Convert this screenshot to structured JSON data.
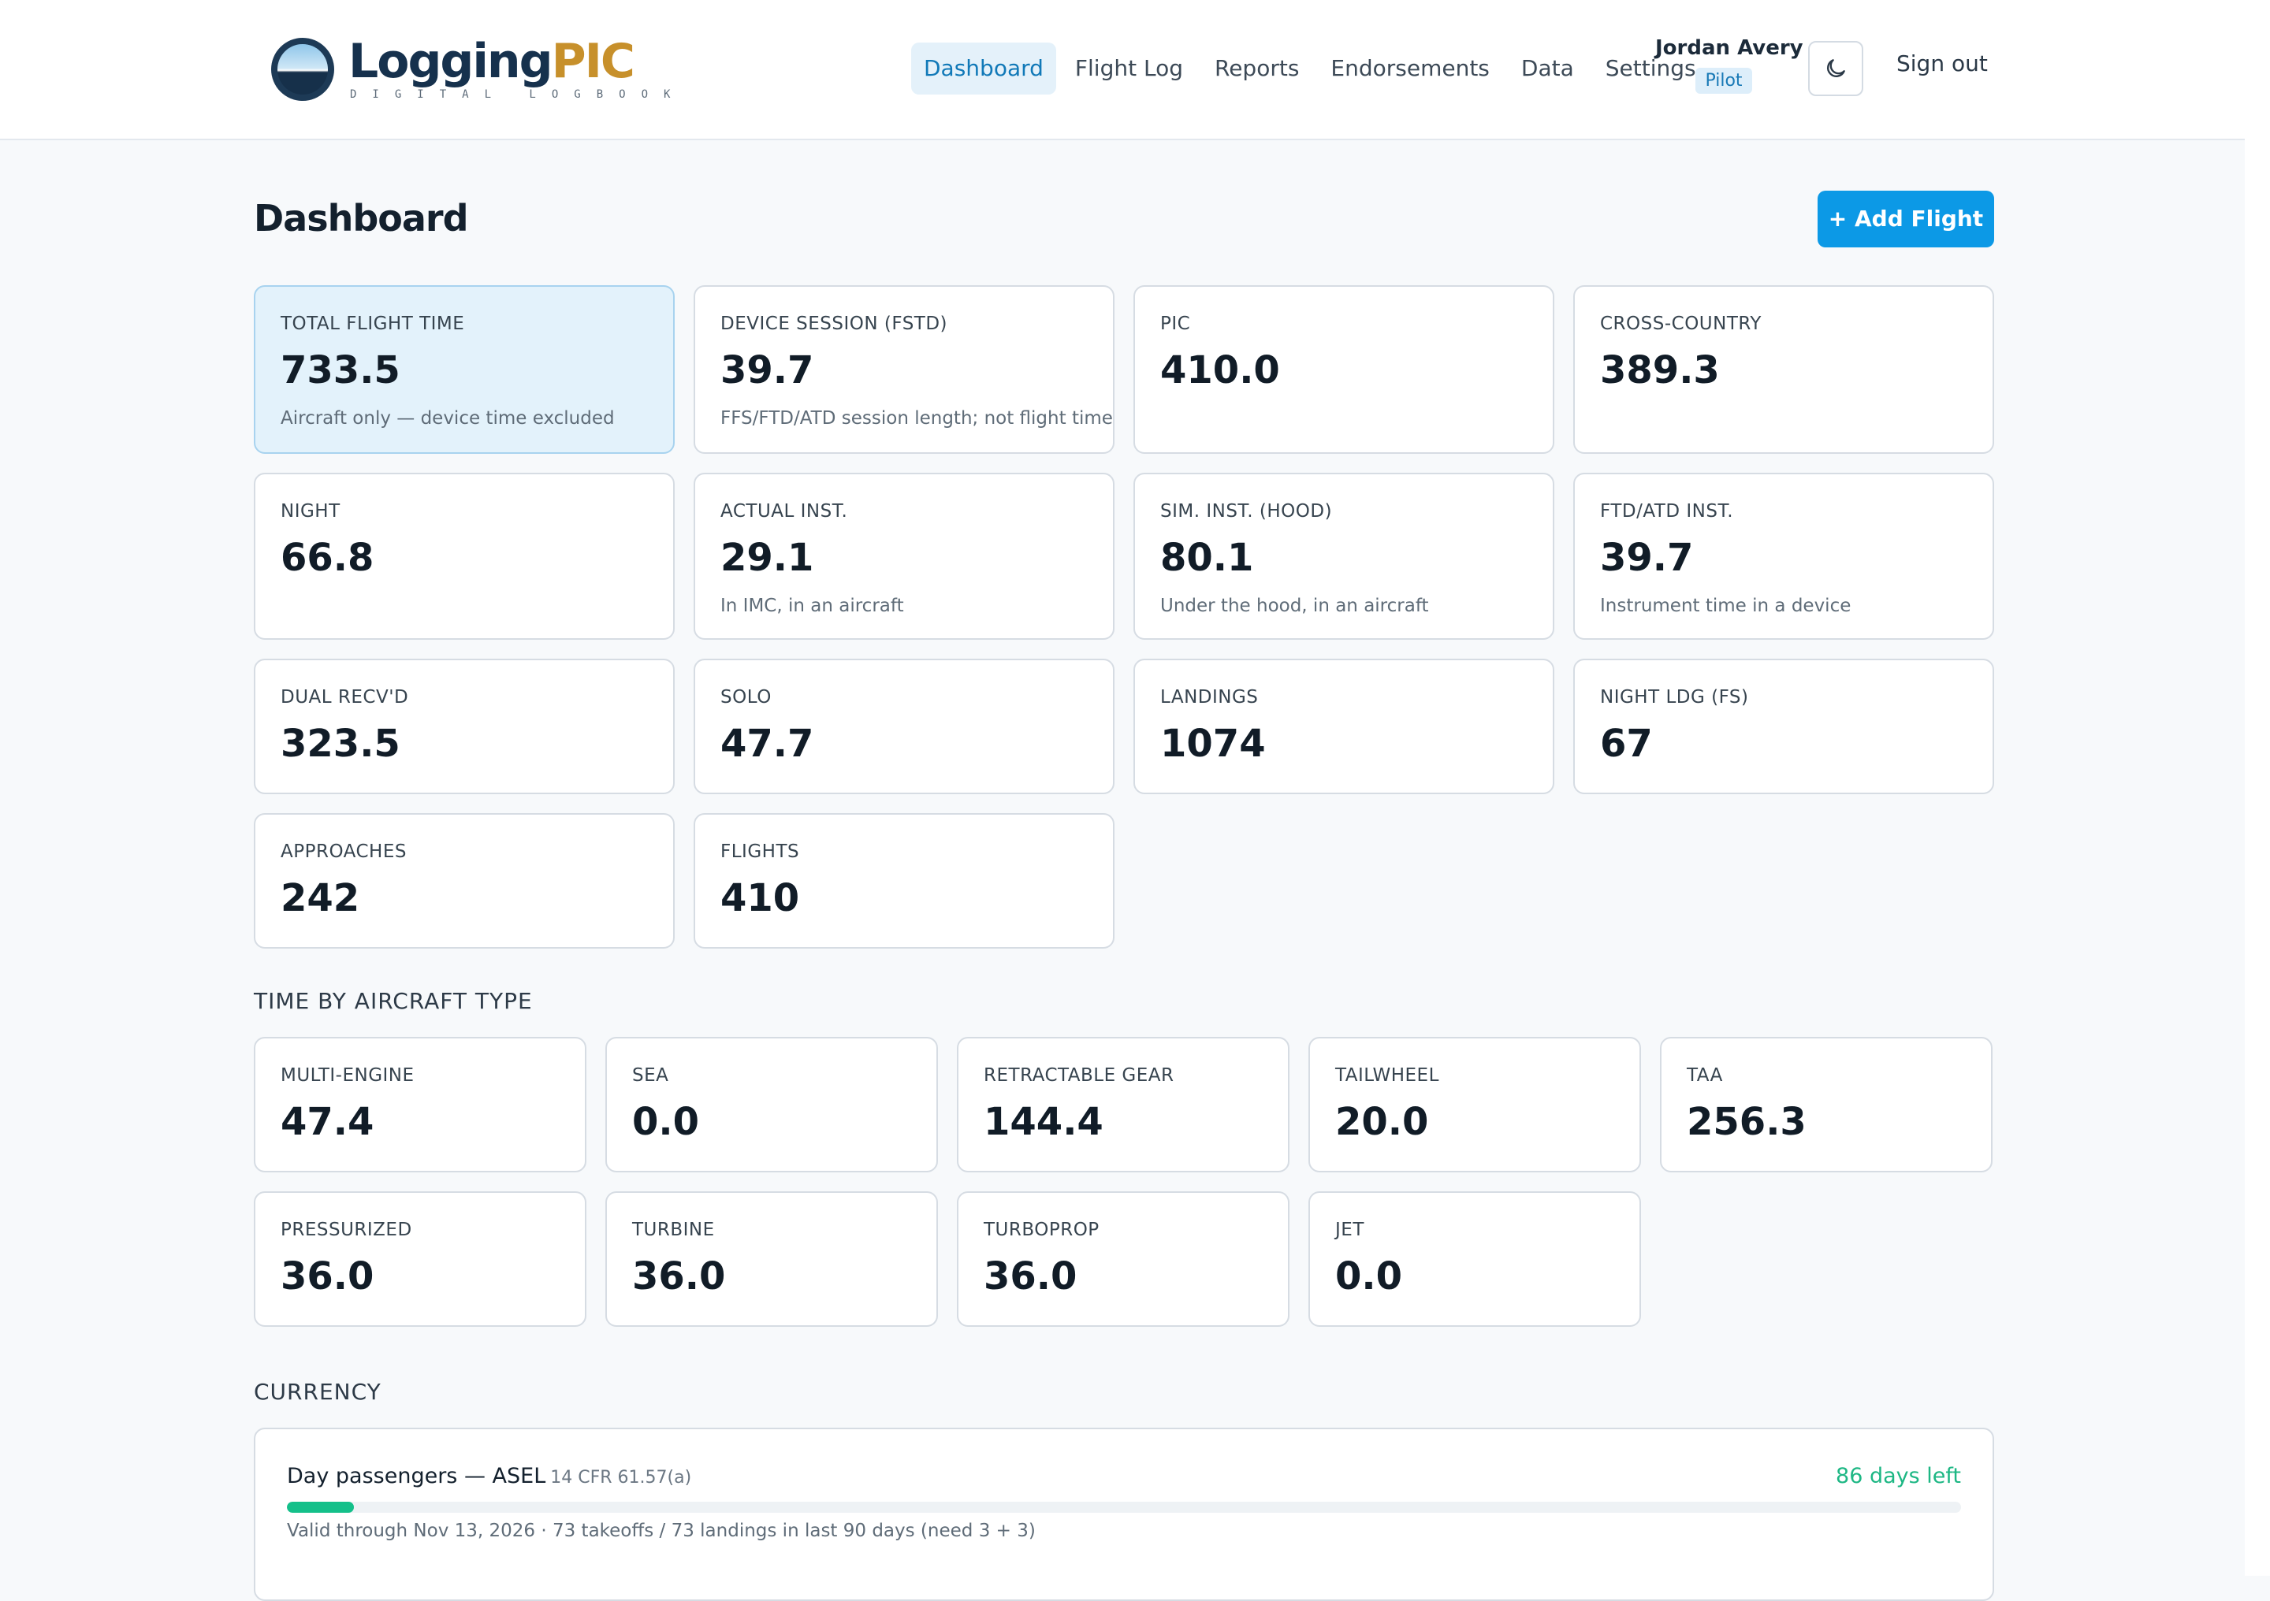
{
  "app": {
    "logo_main": "Logging",
    "logo_accent": "PIC",
    "logo_sub": "DIGITAL LOGBOOK"
  },
  "nav": {
    "items": [
      "Dashboard",
      "Flight Log",
      "Reports",
      "Endorsements",
      "Data",
      "Settings"
    ],
    "active": "Dashboard"
  },
  "user": {
    "name": "Jordan Avery",
    "role": "Pilot"
  },
  "header": {
    "theme_toggle_icon": "moon-icon",
    "sign_out_label": "Sign out"
  },
  "page": {
    "title": "Dashboard",
    "add_flight_label": "+ Add Flight"
  },
  "stats": [
    {
      "label": "TOTAL FLIGHT TIME",
      "value": "733.5",
      "note": "Aircraft only — device time excluded"
    },
    {
      "label": "DEVICE SESSION (FSTD)",
      "value": "39.7",
      "note": "FFS/FTD/ATD session length; not flight time"
    },
    {
      "label": "PIC",
      "value": "410.0",
      "note": ""
    },
    {
      "label": "CROSS-COUNTRY",
      "value": "389.3",
      "note": ""
    },
    {
      "label": "NIGHT",
      "value": "66.8",
      "note": ""
    },
    {
      "label": "ACTUAL INST.",
      "value": "29.1",
      "note": "In IMC, in an aircraft"
    },
    {
      "label": "SIM. INST. (HOOD)",
      "value": "80.1",
      "note": "Under the hood, in an aircraft"
    },
    {
      "label": "FTD/ATD INST.",
      "value": "39.7",
      "note": "Instrument time in a device"
    },
    {
      "label": "DUAL RECV'D",
      "value": "323.5",
      "note": ""
    },
    {
      "label": "SOLO",
      "value": "47.7",
      "note": ""
    },
    {
      "label": "LANDINGS",
      "value": "1074",
      "note": ""
    },
    {
      "label": "NIGHT LDG (FS)",
      "value": "67",
      "note": ""
    },
    {
      "label": "APPROACHES",
      "value": "242",
      "note": ""
    },
    {
      "label": "FLIGHTS",
      "value": "410",
      "note": ""
    }
  ],
  "aircraft_types": {
    "title": "TIME BY AIRCRAFT TYPE",
    "items": [
      {
        "label": "MULTI-ENGINE",
        "value": "47.4"
      },
      {
        "label": "SEA",
        "value": "0.0"
      },
      {
        "label": "RETRACTABLE GEAR",
        "value": "144.4"
      },
      {
        "label": "TAILWHEEL",
        "value": "20.0"
      },
      {
        "label": "TAA",
        "value": "256.3"
      },
      {
        "label": "PRESSURIZED",
        "value": "36.0"
      },
      {
        "label": "TURBINE",
        "value": "36.0"
      },
      {
        "label": "TURBOPROP",
        "value": "36.0"
      },
      {
        "label": "JET",
        "value": "0.0"
      }
    ]
  },
  "currency": {
    "title": "CURRENCY",
    "items": [
      {
        "name": "Day passengers — ASEL",
        "regulation": "14 CFR 61.57(a)",
        "status": "86 days left",
        "progress_fraction": 0.04,
        "detail": "Valid through Nov 13, 2026 · 73 takeoffs / 73 landings in last 90 days (need 3 + 3)"
      }
    ]
  },
  "colors": {
    "accent": "#0c99e6",
    "logo_accent": "#c7902b",
    "success": "#1db784",
    "highlight_card": "#e3f2fb"
  }
}
